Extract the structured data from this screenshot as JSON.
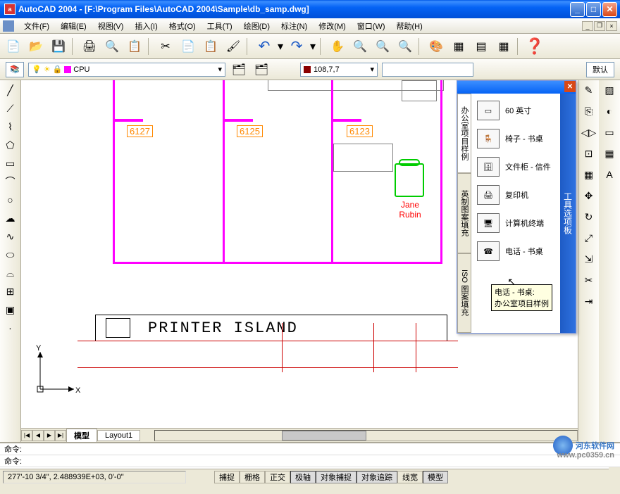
{
  "titlebar": {
    "app_icon_letter": "a",
    "title": "AutoCAD 2004 - [F:\\Program Files\\AutoCAD 2004\\Sample\\db_samp.dwg]"
  },
  "menubar": {
    "items": [
      "文件(F)",
      "编辑(E)",
      "视图(V)",
      "插入(I)",
      "格式(O)",
      "工具(T)",
      "绘图(D)",
      "标注(N)",
      "修改(M)",
      "窗口(W)",
      "帮助(H)"
    ]
  },
  "layer_box": {
    "current_layer": "CPU",
    "icons": "💡☀🔒▪"
  },
  "color_box": {
    "swatch": "#8b0000",
    "label": "108,7,7"
  },
  "drawing": {
    "room_labels": [
      "6127",
      "6125",
      "6123"
    ],
    "person_label": "Jane Rubin",
    "printer_label": "PRINTER ISLAND",
    "ucs_x": "X",
    "ucs_y": "Y",
    "colors": {
      "wall": "#ff00ff",
      "door_label": "#ff8800",
      "chair": "#00cc00",
      "text": "#ff0000",
      "grid_line": "#cc0000",
      "screen_edge": "#808080"
    }
  },
  "layout_tabs": {
    "nav": [
      "|◀",
      "◀",
      "▶",
      "▶|"
    ],
    "tabs": [
      "模型",
      "Layout1"
    ]
  },
  "tool_palette": {
    "title": "工具选项板",
    "side_tabs": [
      "办公室项目样例",
      "英制图案填充",
      "ISO 图案填充"
    ],
    "items": [
      {
        "label": "60 英寸"
      },
      {
        "label": "椅子 - 书桌"
      },
      {
        "label": "文件柜 - 信件"
      },
      {
        "label": "复印机"
      },
      {
        "label": "计算机终端"
      },
      {
        "label": "电话 - 书桌"
      }
    ],
    "tooltip": "电话 - 书桌:\n办公室项目样例"
  },
  "cmdline": {
    "lines": [
      "命令:",
      "命令:"
    ]
  },
  "statusbar": {
    "coords": "277'-10 3/4\", 2.488939E+03, 0'-0\"",
    "buttons": [
      "捕捉",
      "栅格",
      "正交",
      "极轴",
      "对象捕捉",
      "对象追踪",
      "线宽",
      "模型"
    ],
    "active": [
      false,
      false,
      false,
      true,
      true,
      true,
      false,
      true
    ]
  },
  "watermark": {
    "text": "河东软件网",
    "url": "www.pc0359.cn"
  }
}
